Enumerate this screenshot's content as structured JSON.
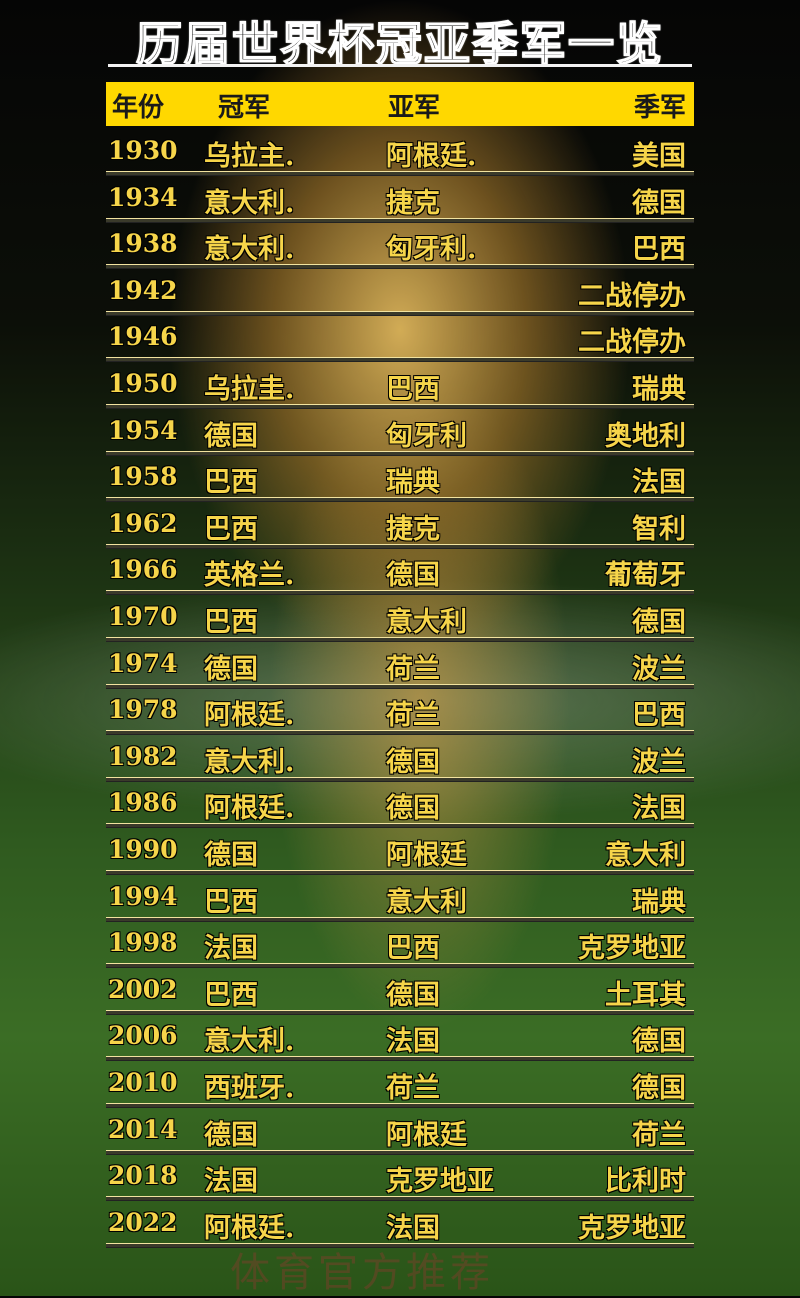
{
  "title": "历届世界杯冠亚季军一览",
  "header": {
    "year": "年份",
    "champion": "冠军",
    "runner_up": "亚军",
    "third": "季军"
  },
  "rows": [
    {
      "year": "1930",
      "champion": "乌拉主.",
      "runner_up": "阿根廷.",
      "third": "美国"
    },
    {
      "year": "1934",
      "champion": "意大利.",
      "runner_up": "捷克",
      "third": "德国"
    },
    {
      "year": "1938",
      "champion": "意大利.",
      "runner_up": "匈牙利.",
      "third": "巴西"
    },
    {
      "year": "1942",
      "champion": "",
      "runner_up": "",
      "third": "二战停办"
    },
    {
      "year": "1946",
      "champion": "",
      "runner_up": "",
      "third": "二战停办"
    },
    {
      "year": "1950",
      "champion": "乌拉圭.",
      "runner_up": "巴西",
      "third": "瑞典"
    },
    {
      "year": "1954",
      "champion": "德国",
      "runner_up": "匈牙利",
      "third": "奥地利"
    },
    {
      "year": "1958",
      "champion": "巴西",
      "runner_up": "瑞典",
      "third": "法国"
    },
    {
      "year": "1962",
      "champion": "巴西",
      "runner_up": "捷克",
      "third": "智利"
    },
    {
      "year": "1966",
      "champion": "英格兰.",
      "runner_up": "德国",
      "third": "葡萄牙"
    },
    {
      "year": "1970",
      "champion": "巴西",
      "runner_up": "意大利",
      "third": "德国"
    },
    {
      "year": "1974",
      "champion": "德国",
      "runner_up": "荷兰",
      "third": "波兰"
    },
    {
      "year": "1978",
      "champion": "阿根廷.",
      "runner_up": "荷兰",
      "third": "巴西"
    },
    {
      "year": "1982",
      "champion": "意大利.",
      "runner_up": "德国",
      "third": "波兰"
    },
    {
      "year": "1986",
      "champion": "阿根廷.",
      "runner_up": "德国",
      "third": "法国"
    },
    {
      "year": "1990",
      "champion": "德国",
      "runner_up": "阿根廷",
      "third": "意大利"
    },
    {
      "year": "1994",
      "champion": "巴西",
      "runner_up": "意大利",
      "third": "瑞典"
    },
    {
      "year": "1998",
      "champion": "法国",
      "runner_up": "巴西",
      "third": "克罗地亚"
    },
    {
      "year": "2002",
      "champion": "巴西",
      "runner_up": "德国",
      "third": "土耳其"
    },
    {
      "year": "2006",
      "champion": "意大利.",
      "runner_up": "法国",
      "third": "德国"
    },
    {
      "year": "2010",
      "champion": "西班牙.",
      "runner_up": "荷兰",
      "third": "德国"
    },
    {
      "year": "2014",
      "champion": "德国",
      "runner_up": "阿根廷",
      "third": "荷兰"
    },
    {
      "year": "2018",
      "champion": "法国",
      "runner_up": "克罗地亚",
      "third": "比利时"
    },
    {
      "year": "2022",
      "champion": "阿根廷.",
      "runner_up": "法国",
      "third": "克罗地亚"
    }
  ],
  "watermark": "体育官方推荐",
  "colors": {
    "header_bg": "#ffd800",
    "row_text": "#f6d54a"
  }
}
